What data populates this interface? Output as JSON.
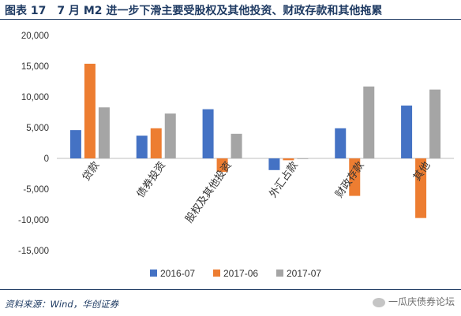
{
  "header": {
    "figure_num": "图表 17",
    "title": "7 月 M2 进一步下滑主要受股权及其他投资、财政存款和其他拖累"
  },
  "source": "资料来源：Wind，华创证券",
  "watermark": "一瓜庆债券论坛",
  "chart_data": {
    "type": "bar",
    "categories": [
      "贷款",
      "债券投资",
      "股权及其他投资",
      "外汇占款",
      "财政存款",
      "其他"
    ],
    "series": [
      {
        "name": "2016-07",
        "color": "#4472c4",
        "values": [
          4600,
          3700,
          8000,
          -1900,
          4900,
          8600
        ]
      },
      {
        "name": "2017-06",
        "color": "#ed7d31",
        "values": [
          15400,
          4900,
          -2200,
          -300,
          -6100,
          -9700
        ]
      },
      {
        "name": "2017-07",
        "color": "#a5a5a5",
        "values": [
          8300,
          7300,
          4000,
          -100,
          11700,
          11200
        ]
      }
    ],
    "ylim": [
      -15000,
      20000
    ],
    "yticks": [
      "-15,000",
      "-10,000",
      "-5,000",
      "0",
      "5,000",
      "10,000",
      "15,000",
      "20,000"
    ],
    "legend_position": "bottom",
    "grid": false
  }
}
